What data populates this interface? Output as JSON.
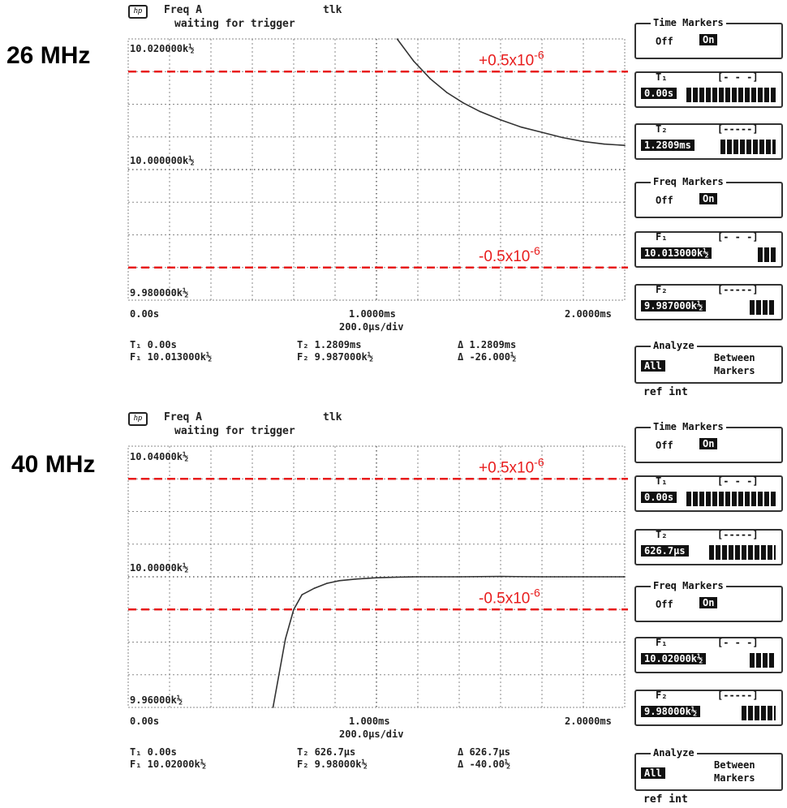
{
  "colors": {
    "trace": "#333333",
    "grid": "#888888",
    "limit": "#e81c1c",
    "annotation": "#e81c1c"
  },
  "panels": [
    {
      "label": "26 MHz",
      "header": {
        "icon": "hp-logo-icon",
        "logo": "hp",
        "line1_left": "Freq A",
        "line1_right": "tlk",
        "line2": "waiting for trigger"
      },
      "y_labels": {
        "top": "10.020000k½",
        "mid": "10.000000k½",
        "bottom": "9.980000k½"
      },
      "x_labels": {
        "left": "0.00s",
        "mid": "1.0000ms",
        "right": "2.0000ms",
        "scale": "200.0µs/div"
      },
      "annotations": {
        "upper": "+0.5x10",
        "upper_exp": "-6",
        "lower": "-0.5x10",
        "lower_exp": "-6"
      },
      "readouts": {
        "t1": "T₁ 0.00s",
        "f1": "F₁ 10.013000k½",
        "t2": "T₂ 1.2809ms",
        "f2": "F₂ 9.987000k½",
        "dt": "Δ 1.2809ms",
        "df": "Δ -26.000½"
      },
      "softkeys": {
        "time_markers": "Time Markers",
        "off": "Off",
        "on": "On",
        "t1_label": "T₁",
        "t1_range": "[- - -]",
        "t1_value": "0.00s",
        "t2_label": "T₂",
        "t2_range": "[-----]",
        "t2_value": "1.2809ms",
        "freq_markers": "Freq Markers",
        "off2": "Off",
        "on2": "On",
        "f1_label": "F₁",
        "f1_range": "[- - -]",
        "f1_value": "10.013000k½",
        "f2_label": "F₂",
        "f2_range": "[-----]",
        "f2_value": "9.987000k½",
        "analyze": "Analyze",
        "all": "All",
        "between": "Between",
        "markers": "Markers"
      },
      "ref_int": "ref int"
    },
    {
      "label": "40 MHz",
      "header": {
        "icon": "hp-logo-icon",
        "logo": "hp",
        "line1_left": "Freq A",
        "line1_right": "tlk",
        "line2": "waiting for trigger"
      },
      "y_labels": {
        "top": "10.04000k½",
        "mid": "10.00000k½",
        "bottom": "9.96000k½"
      },
      "x_labels": {
        "left": "0.00s",
        "mid": "1.000ms",
        "right": "2.0000ms",
        "scale": "200.0µs/div"
      },
      "annotations": {
        "upper": "+0.5x10",
        "upper_exp": "-6",
        "lower": "-0.5x10",
        "lower_exp": "-6"
      },
      "readouts": {
        "t1": "T₁ 0.00s",
        "f1": "F₁ 10.02000k½",
        "t2": "T₂ 626.7µs",
        "f2": "F₂ 9.98000k½",
        "dt": "Δ 626.7µs",
        "df": "Δ -40.00½"
      },
      "softkeys": {
        "time_markers": "Time Markers",
        "off": "Off",
        "on": "On",
        "t1_label": "T₁",
        "t1_range": "[- - -]",
        "t1_value": "0.00s",
        "t2_label": "T₂",
        "t2_range": "[-----]",
        "t2_value": "626.7µs",
        "freq_markers": "Freq Markers",
        "off2": "Off",
        "on2": "On",
        "f1_label": "F₁",
        "f1_range": "[- - -]",
        "f1_value": "10.02000k½",
        "f2_label": "F₂",
        "f2_range": "[-----]",
        "f2_value": "9.98000k½",
        "analyze": "Analyze",
        "all": "All",
        "between": "Between",
        "markers": "Markers"
      },
      "ref_int": "ref int"
    }
  ],
  "chart_data": [
    {
      "type": "line",
      "x_unit": "ms",
      "y_unit": "kHz",
      "xlim": [
        0,
        2.4
      ],
      "ylim": [
        9.98,
        10.02
      ],
      "grid": true,
      "limit_lines_y": [
        10.015,
        9.985
      ],
      "series": [
        {
          "x": [
            1.3,
            1.38,
            1.46,
            1.54,
            1.62,
            1.7,
            1.8,
            1.9,
            2.0,
            2.1,
            2.2,
            2.3,
            2.4
          ],
          "y": [
            10.02,
            10.0166,
            10.0139,
            10.0118,
            10.0102,
            10.0089,
            10.0076,
            10.0065,
            10.0057,
            10.0049,
            10.0043,
            10.0039,
            10.0037
          ]
        }
      ]
    },
    {
      "type": "line",
      "x_unit": "ms",
      "y_unit": "kHz",
      "xlim": [
        0,
        2.4
      ],
      "ylim": [
        9.96,
        10.04
      ],
      "grid": true,
      "limit_lines_y": [
        10.03,
        9.99
      ],
      "series": [
        {
          "x": [
            0.7,
            0.76,
            0.8,
            0.84,
            0.9,
            0.96,
            1.02,
            1.1,
            1.2,
            1.3,
            1.4,
            1.6,
            1.8,
            2.0,
            2.2,
            2.4
          ],
          "y": [
            9.96,
            9.981,
            9.99,
            9.9945,
            9.9965,
            9.998,
            9.9988,
            9.9993,
            9.9997,
            9.9999,
            10.0,
            10.0,
            10.0001,
            10.0,
            10.0,
            10.0
          ]
        }
      ]
    }
  ]
}
